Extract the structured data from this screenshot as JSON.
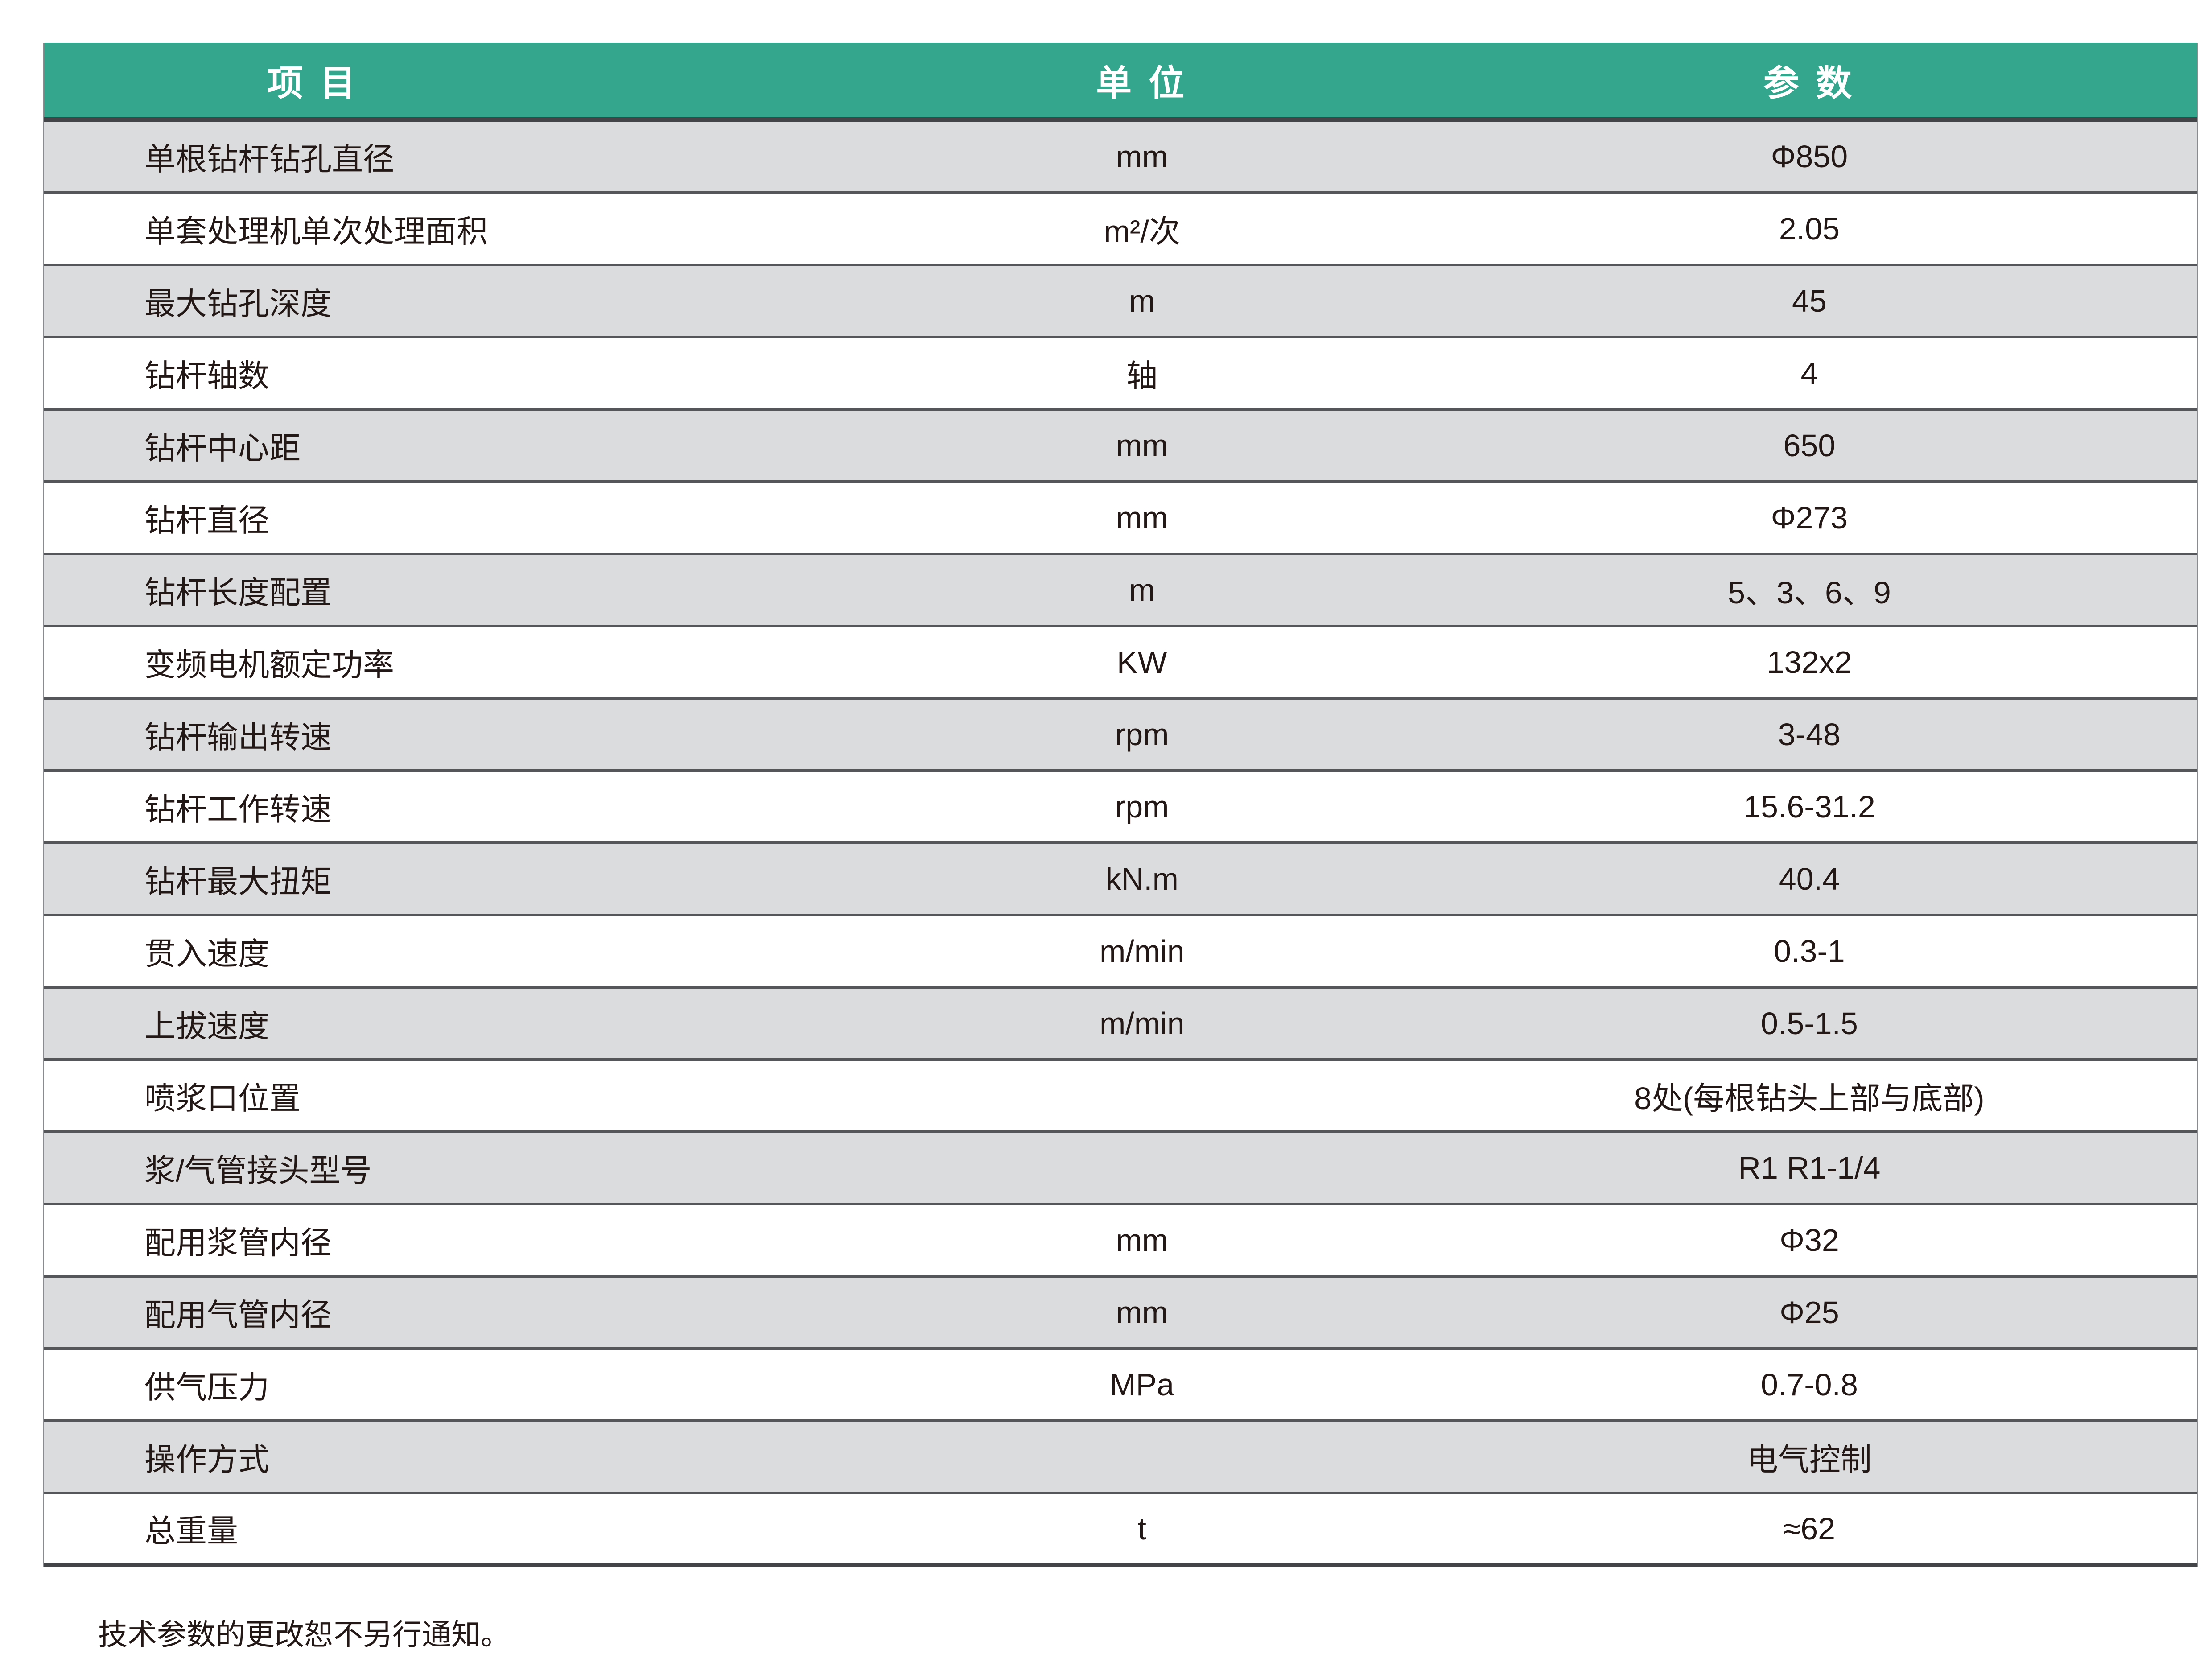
{
  "table": {
    "columns": [
      "项 目",
      "单 位",
      "参 数"
    ],
    "rows": [
      {
        "item": "单根钻杆钻孔直径",
        "unit": "mm",
        "value": "Φ850"
      },
      {
        "item": "单套处理机单次处理面积",
        "unit": "m²/次",
        "value": "2.05"
      },
      {
        "item": "最大钻孔深度",
        "unit": "m",
        "value": "45"
      },
      {
        "item": "钻杆轴数",
        "unit": "轴",
        "value": "4"
      },
      {
        "item": "钻杆中心距",
        "unit": "mm",
        "value": "650"
      },
      {
        "item": "钻杆直径",
        "unit": "mm",
        "value": "Φ273"
      },
      {
        "item": "钻杆长度配置",
        "unit": "m",
        "value": "5、3、6、9"
      },
      {
        "item": "变频电机额定功率",
        "unit": "KW",
        "value": "132x2"
      },
      {
        "item": "钻杆输出转速",
        "unit": "rpm",
        "value": "3-48"
      },
      {
        "item": "钻杆工作转速",
        "unit": "rpm",
        "value": "15.6-31.2"
      },
      {
        "item": "钻杆最大扭矩",
        "unit": "kN.m",
        "value": "40.4"
      },
      {
        "item": "贯入速度",
        "unit": "m/min",
        "value": "0.3-1"
      },
      {
        "item": "上拔速度",
        "unit": "m/min",
        "value": "0.5-1.5"
      },
      {
        "item": "喷浆口位置",
        "unit": "",
        "value": "8处(每根钻头上部与底部)"
      },
      {
        "item": "浆/气管接头型号",
        "unit": "",
        "value": "R1 R1-1/4"
      },
      {
        "item": "配用浆管内径",
        "unit": "mm",
        "value": "Φ32"
      },
      {
        "item": "配用气管内径",
        "unit": "mm",
        "value": "Φ25"
      },
      {
        "item": "供气压力",
        "unit": "MPa",
        "value": "0.7-0.8"
      },
      {
        "item": "操作方式",
        "unit": "",
        "value": "电气控制"
      },
      {
        "item": "总重量",
        "unit": "t",
        "value": "≈62"
      }
    ],
    "colors": {
      "header_bg": "#33A68D",
      "header_text": "#FFFFFF",
      "row_alt_bg": "#DBDCDD",
      "row_bg": "#FFFFFF",
      "separator": "#55565A",
      "frame": "#434447",
      "text": "#231815"
    }
  },
  "footer": {
    "note": "技术参数的更改恕不另行通知。"
  }
}
